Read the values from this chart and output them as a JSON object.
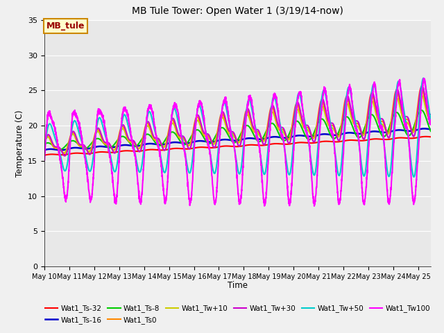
{
  "title": "MB Tule Tower: Open Water 1 (3/19/14-now)",
  "xlabel": "Time",
  "ylabel": "Temperature (C)",
  "ylim": [
    0,
    35
  ],
  "yticks": [
    0,
    5,
    10,
    15,
    20,
    25,
    30,
    35
  ],
  "station_label": "MB_tule",
  "x_tick_labels": [
    "May 10",
    "May 11",
    "May 12",
    "May 13",
    "May 14",
    "May 15",
    "May 16",
    "May 17",
    "May 18",
    "May 19",
    "May 20",
    "May 21",
    "May 22",
    "May 23",
    "May 24",
    "May 25"
  ],
  "colors": {
    "ts32": "#ff0000",
    "ts16": "#0000cc",
    "ts8": "#00cc00",
    "ts0": "#ff8800",
    "tw10": "#cccc00",
    "tw30": "#cc00cc",
    "tw50": "#00cccc",
    "tw100": "#ff00ff"
  },
  "legend_labels": [
    "Wat1_Ts-32",
    "Wat1_Ts-16",
    "Wat1_Ts-8",
    "Wat1_Ts0",
    "Wat1_Tw+10",
    "Wat1_Tw+30",
    "Wat1_Tw+50",
    "Wat1_Tw100"
  ]
}
